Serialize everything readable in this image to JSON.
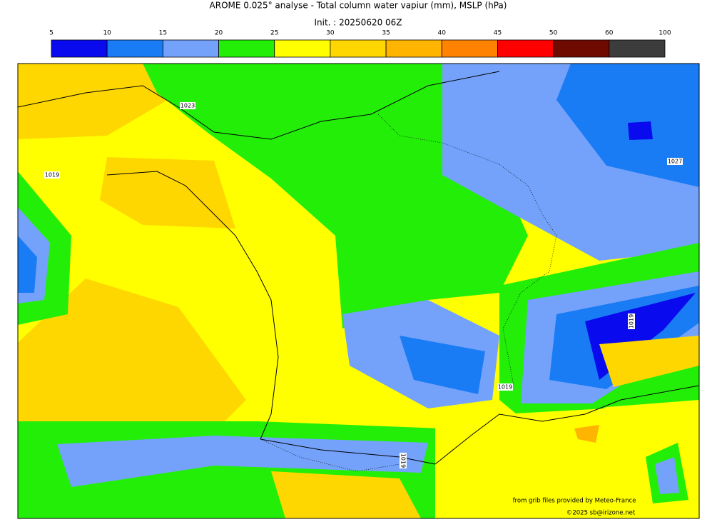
{
  "title": "AROME 0.025° analyse - Total column water vapiur (mm), MSLP (hPa)",
  "subtitle": "Init. : 20250620 06Z",
  "colorbar": {
    "ticks": [
      5,
      10,
      15,
      20,
      25,
      30,
      35,
      40,
      45,
      50,
      60,
      100
    ],
    "colors": [
      "#0a0aee",
      "#1a7cf5",
      "#74a2fa",
      "#22ee08",
      "#ffff00",
      "#ffd700",
      "#ffb400",
      "#ff8200",
      "#ff0000",
      "#6e0a00",
      "#3c3c3c"
    ]
  },
  "isobar_labels": [
    "1023",
    "1019",
    "1027",
    "1019",
    "1019",
    "1019"
  ],
  "credits": [
    "from grib files provided by Meteo-France",
    "©2025 sb@irizone.net"
  ]
}
